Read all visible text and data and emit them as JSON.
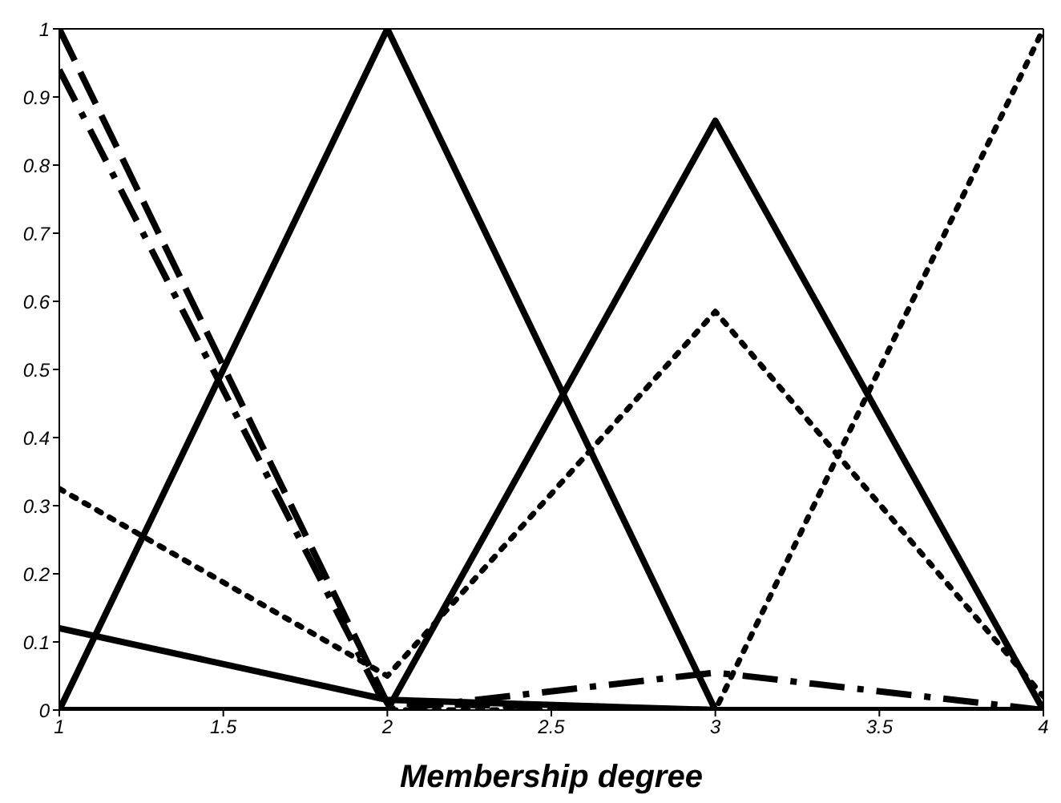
{
  "chart_data": {
    "type": "line",
    "xlabel": "Membership degree",
    "x": [
      1,
      2,
      3,
      4
    ],
    "xlim": [
      1,
      4
    ],
    "xticks": [
      1,
      1.5,
      2,
      2.5,
      3,
      3.5,
      4
    ],
    "ylim": [
      0,
      1
    ],
    "yticks": [
      0,
      0.1,
      0.2,
      0.3,
      0.4,
      0.5,
      0.6,
      0.7,
      0.8,
      0.9,
      1
    ],
    "marker": "none",
    "series": [
      {
        "color": "#000000",
        "line_style": "dashed",
        "values": [
          1,
          0.01,
          0,
          0
        ]
      },
      {
        "color": "#000000",
        "line_style": "dashdot",
        "values": [
          0.94,
          0,
          0.055,
          0
        ]
      },
      {
        "color": "#000000",
        "line_style": "solid",
        "values": [
          0,
          1,
          0,
          0
        ]
      },
      {
        "color": "#000000",
        "line_style": "solid",
        "values": [
          0,
          0,
          0.865,
          0
        ]
      },
      {
        "color": "#000000",
        "line_style": "solid",
        "values": [
          0.12,
          0.015,
          0,
          0
        ]
      },
      {
        "color": "#000000",
        "line_style": "dotted",
        "values": [
          0.325,
          0.05,
          0.585,
          0.02
        ]
      },
      {
        "color": "#000000",
        "line_style": "dotted",
        "values": [
          0,
          0,
          0,
          1
        ]
      }
    ]
  }
}
